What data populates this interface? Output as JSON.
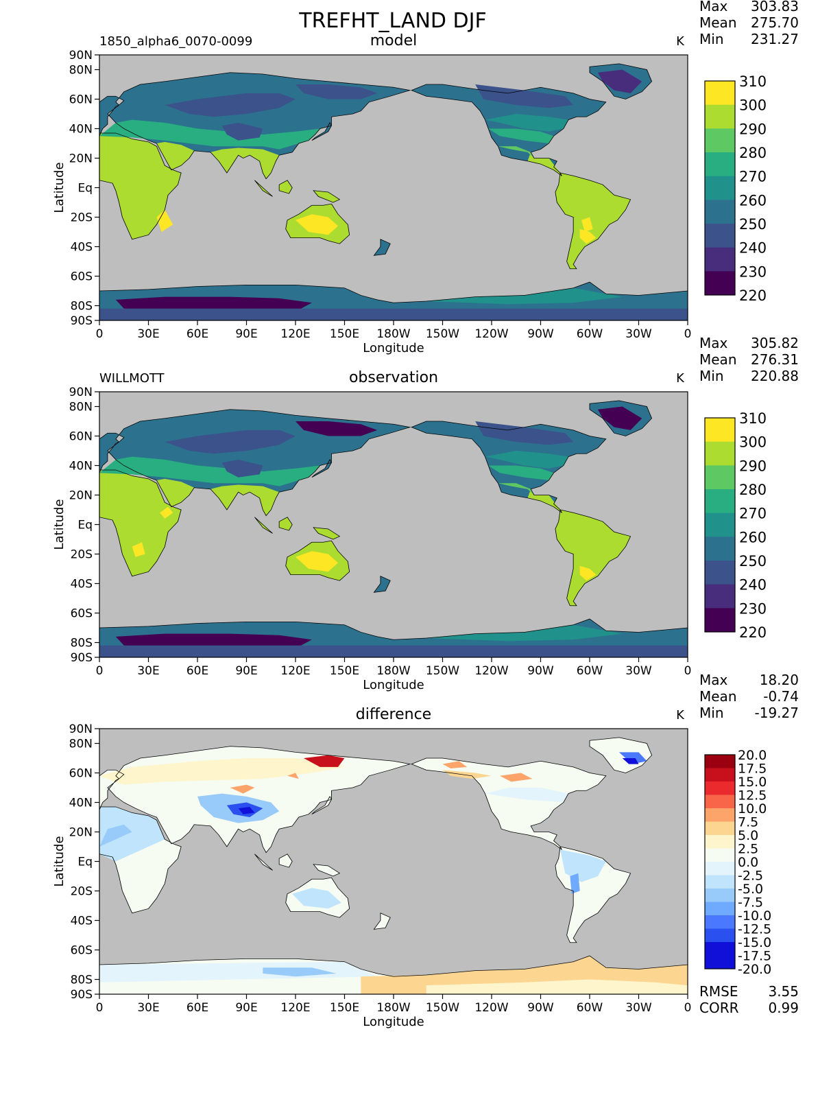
{
  "title": "TREFHT_LAND DJF",
  "unit": "K",
  "x_ticks": [
    "0",
    "30E",
    "60E",
    "90E",
    "120E",
    "150E",
    "180W",
    "150W",
    "120W",
    "90W",
    "60W",
    "30W",
    "0"
  ],
  "y_ticks": [
    "90N",
    "80N",
    "60N",
    "40N",
    "20N",
    "Eq",
    "20S",
    "40S",
    "60S",
    "80S",
    "90S"
  ],
  "y_tick_lat": [
    90,
    80,
    60,
    40,
    20,
    0,
    -20,
    -40,
    -60,
    -80,
    -90
  ],
  "x_label": "Longitude",
  "y_label": "Latitude",
  "stat_labels": {
    "max": "Max",
    "mean": "Mean",
    "min": "Min",
    "rmse": "RMSE",
    "corr": "CORR"
  },
  "colors": {
    "ocean": "#bebebe",
    "abs_levels": [
      "#440154",
      "#472d7b",
      "#3b528b",
      "#2c728e",
      "#21918c",
      "#28ae80",
      "#5ec962",
      "#addc30",
      "#fde725"
    ],
    "diff_levels": [
      "#1010d8",
      "#2a50f0",
      "#4a78ff",
      "#6faaff",
      "#98cbfa",
      "#bfe4fb",
      "#e4f4fc",
      "#f6fcf2",
      "#fff5cc",
      "#fcd590",
      "#fca46a",
      "#f86548",
      "#ea2a2c",
      "#c8101c",
      "#9a0010"
    ]
  },
  "panels": [
    {
      "name": "model",
      "title": "model",
      "left_label": "1850_alpha6_0070-0099",
      "unit": "K",
      "stats": {
        "max": "303.83",
        "mean": "275.70",
        "min": "231.27"
      },
      "colorbar_labels": [
        "310",
        "300",
        "290",
        "280",
        "270",
        "260",
        "250",
        "240",
        "230",
        "220"
      ]
    },
    {
      "name": "observation",
      "title": "observation",
      "left_label": "WILLMOTT",
      "unit": "K",
      "stats": {
        "max": "305.82",
        "mean": "276.31",
        "min": "220.88"
      },
      "colorbar_labels": [
        "310",
        "300",
        "290",
        "280",
        "270",
        "260",
        "250",
        "240",
        "230",
        "220"
      ]
    },
    {
      "name": "difference",
      "title": "difference",
      "left_label": "",
      "unit": "K",
      "stats": {
        "max": "18.20",
        "mean": "-0.74",
        "min": "-19.27"
      },
      "colorbar_labels": [
        "20.0",
        "17.5",
        "15.0",
        "12.5",
        "10.0",
        "7.5",
        "5.0",
        "2.5",
        "0.0",
        "-2.5",
        "-5.0",
        "-7.5",
        "-10.0",
        "-12.5",
        "-15.0",
        "-17.5",
        "-20.0"
      ],
      "metrics": {
        "rmse": "3.55",
        "corr": "0.99"
      }
    }
  ]
}
